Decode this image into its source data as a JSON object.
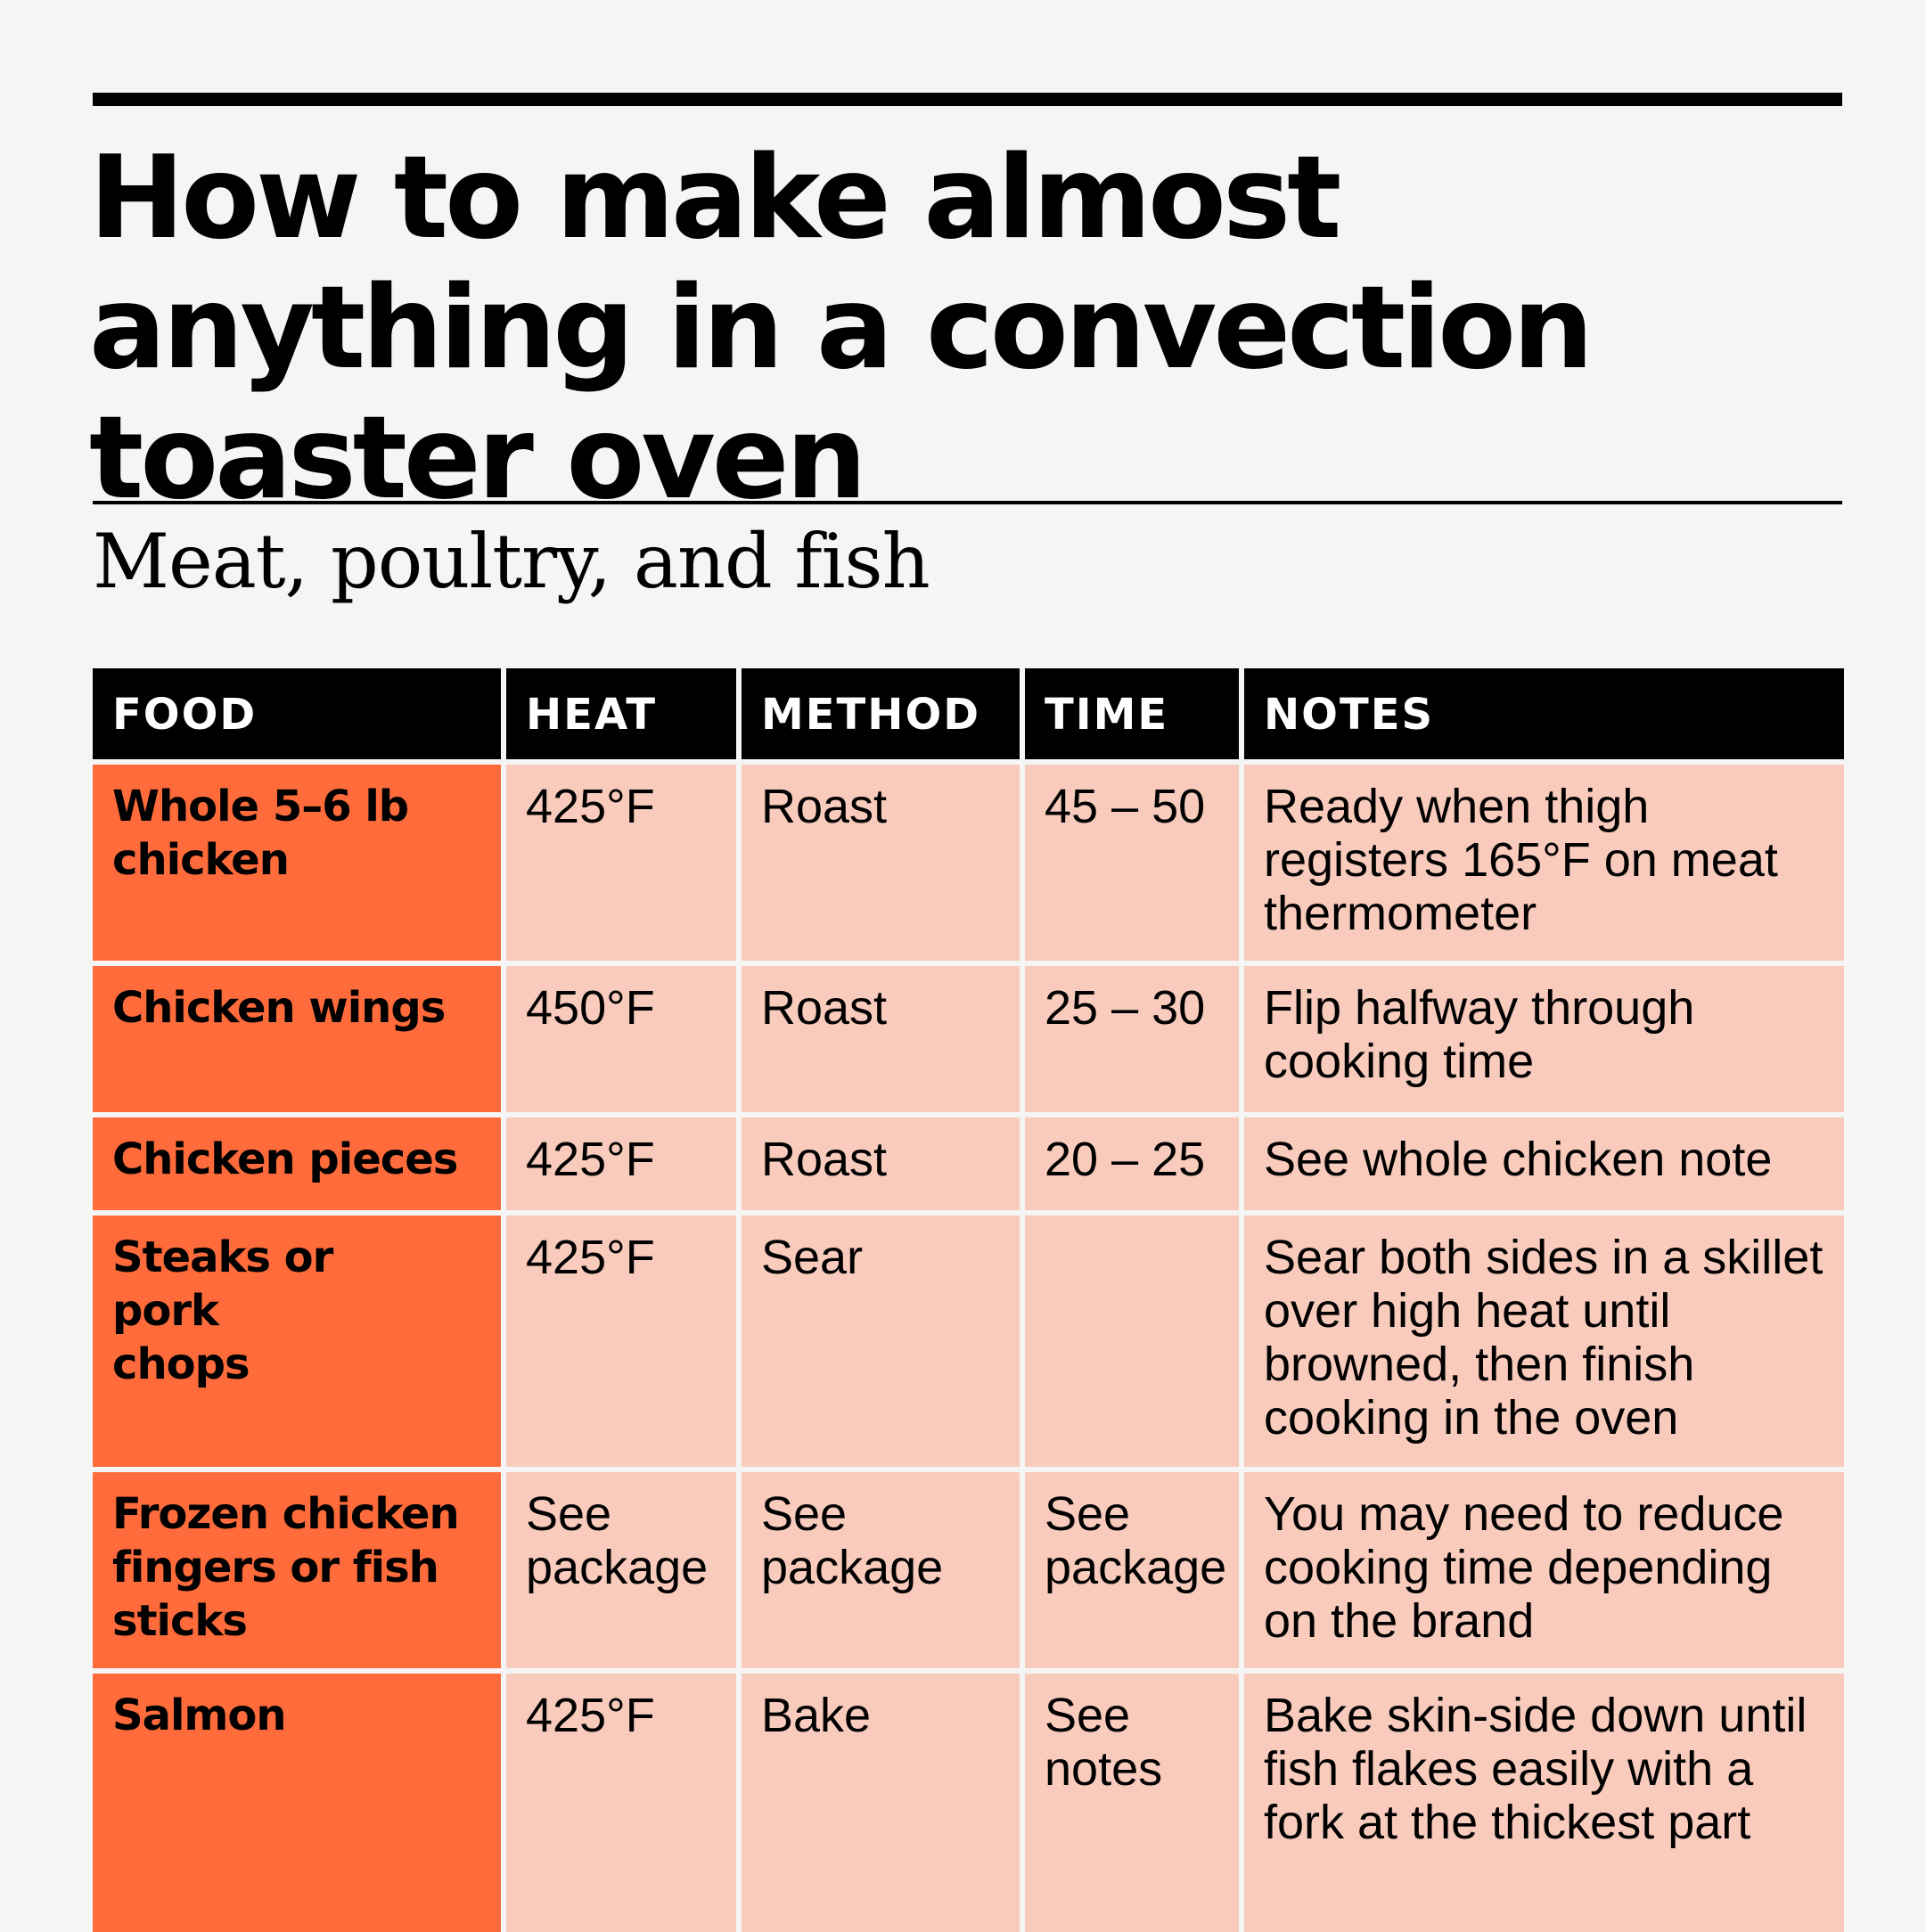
{
  "title": "How to make almost anything in a convection toaster oven",
  "section": "Meat, poultry, and fish",
  "colors": {
    "background": "#f5f5f5",
    "header": "#000000",
    "food_column": "#ff6b3b",
    "data_cells": "#f8cbbd"
  },
  "table": {
    "headers": [
      "FOOD",
      "HEAT",
      "METHOD",
      "TIME",
      "NOTES"
    ],
    "rows": [
      [
        "Whole 5–6 lb chicken",
        "425°F",
        "Roast",
        "45 – 50",
        "Ready when thigh registers 165°F on meat thermometer"
      ],
      [
        "Chicken wings",
        "450°F",
        "Roast",
        "25 – 30",
        "Flip halfway through cooking time"
      ],
      [
        "Chicken pieces",
        "425°F",
        "Roast",
        "20 – 25",
        "See whole chicken note"
      ],
      [
        "Steaks or pork chops",
        "425°F",
        "Sear",
        "",
        "Sear both sides in a skillet over high heat until browned, then finish cooking in the oven"
      ],
      [
        "Frozen chicken fingers or fish sticks",
        "See package",
        "See package",
        "See package",
        "You may need to reduce cooking time depending on the brand"
      ],
      [
        "Salmon",
        "425°F",
        "Bake",
        "See notes",
        "Bake skin-side down until fish flakes easily with a fork at the thickest part"
      ]
    ]
  }
}
